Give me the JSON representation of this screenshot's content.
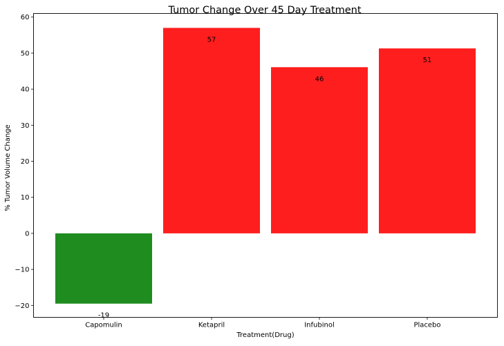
{
  "chart_data": {
    "type": "bar",
    "title": "Tumor Change Over 45 Day Treatment",
    "xlabel": "Treatment(Drug)",
    "ylabel": "% Tumor Volume Change",
    "categories": [
      "Capomulin",
      "Ketapril",
      "Infubinol",
      "Placebo"
    ],
    "values": [
      -19.5,
      57.0,
      46.1,
      51.3
    ],
    "data_labels": [
      "-19",
      "57",
      "46",
      "51"
    ],
    "bar_colors": [
      "#1e8c1e",
      "#ff1e1e",
      "#ff1e1e",
      "#ff1e1e"
    ],
    "ylim": [
      -23.3,
      61.0
    ],
    "yticks": [
      -20,
      -10,
      0,
      10,
      20,
      30,
      40,
      50,
      60
    ],
    "grid": false
  }
}
